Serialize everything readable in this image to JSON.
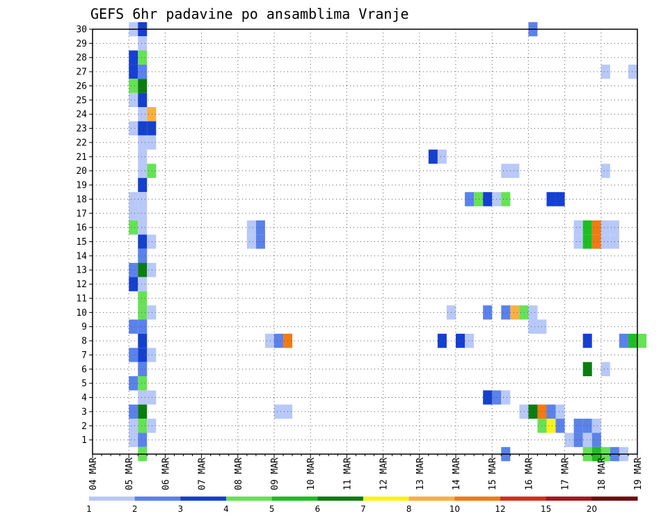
{
  "chart_data": {
    "type": "heatmap",
    "title": "GEFS 6hr padavine po ansamblima Vranje",
    "xlabel": "",
    "ylabel": "",
    "x_labels": [
      "04 MAR",
      "05 MAR",
      "06 MAR",
      "07 MAR",
      "08 MAR",
      "09 MAR",
      "10 MAR",
      "11 MAR",
      "12 MAR",
      "13 MAR",
      "14 MAR",
      "15 MAR",
      "16 MAR",
      "17 MAR",
      "18 MAR",
      "19 MAR"
    ],
    "y_labels": [
      "1",
      "2",
      "3",
      "4",
      "5",
      "6",
      "7",
      "8",
      "9",
      "10",
      "11",
      "12",
      "13",
      "14",
      "15",
      "16",
      "17",
      "18",
      "19",
      "20",
      "21",
      "22",
      "23",
      "24",
      "25",
      "26",
      "27",
      "28",
      "29",
      "30"
    ],
    "x_unit": "6-hour step (4 steps per day, step 0 = 04 MAR)",
    "y_range": [
      0,
      30
    ],
    "grid": true,
    "colorbar": {
      "labels": [
        "1",
        "2",
        "3",
        "4",
        "5",
        "6",
        "7",
        "8",
        "10",
        "12",
        "15",
        "20"
      ],
      "colors": [
        "#b8c8f8",
        "#5a82ec",
        "#1440d0",
        "#66e255",
        "#1dbe22",
        "#0b7d10",
        "#fff21a",
        "#fab040",
        "#f27a14",
        "#d2301c",
        "#a81418",
        "#6e0c0c"
      ]
    },
    "cells": [
      {
        "t": 4,
        "m": 30,
        "v": 1
      },
      {
        "t": 5,
        "m": 30,
        "v": 3
      },
      {
        "t": 5,
        "m": 29,
        "v": 1
      },
      {
        "t": 4,
        "m": 28,
        "v": 3
      },
      {
        "t": 5,
        "m": 28,
        "v": 4
      },
      {
        "t": 4,
        "m": 27,
        "v": 3
      },
      {
        "t": 5,
        "m": 27,
        "v": 2
      },
      {
        "t": 4,
        "m": 26,
        "v": 4
      },
      {
        "t": 5,
        "m": 26,
        "v": 6
      },
      {
        "t": 4,
        "m": 25,
        "v": 1
      },
      {
        "t": 5,
        "m": 25,
        "v": 3
      },
      {
        "t": 5,
        "m": 24,
        "v": 1
      },
      {
        "t": 6,
        "m": 24,
        "v": 8
      },
      {
        "t": 4,
        "m": 23,
        "v": 1
      },
      {
        "t": 5,
        "m": 23,
        "v": 3
      },
      {
        "t": 6,
        "m": 23,
        "v": 3
      },
      {
        "t": 5,
        "m": 22,
        "v": 1
      },
      {
        "t": 6,
        "m": 22,
        "v": 1
      },
      {
        "t": 5,
        "m": 21,
        "v": 1
      },
      {
        "t": 5,
        "m": 20,
        "v": 1
      },
      {
        "t": 6,
        "m": 20,
        "v": 4
      },
      {
        "t": 5,
        "m": 19,
        "v": 3
      },
      {
        "t": 4,
        "m": 18,
        "v": 1
      },
      {
        "t": 5,
        "m": 18,
        "v": 1
      },
      {
        "t": 4,
        "m": 17,
        "v": 1
      },
      {
        "t": 5,
        "m": 17,
        "v": 1
      },
      {
        "t": 4,
        "m": 16,
        "v": 4
      },
      {
        "t": 5,
        "m": 16,
        "v": 1
      },
      {
        "t": 5,
        "m": 15,
        "v": 3
      },
      {
        "t": 6,
        "m": 15,
        "v": 1
      },
      {
        "t": 5,
        "m": 14,
        "v": 2
      },
      {
        "t": 4,
        "m": 13,
        "v": 2
      },
      {
        "t": 5,
        "m": 13,
        "v": 6
      },
      {
        "t": 6,
        "m": 13,
        "v": 1
      },
      {
        "t": 4,
        "m": 12,
        "v": 3
      },
      {
        "t": 5,
        "m": 12,
        "v": 1
      },
      {
        "t": 5,
        "m": 11,
        "v": 4
      },
      {
        "t": 5,
        "m": 10,
        "v": 4
      },
      {
        "t": 6,
        "m": 10,
        "v": 1
      },
      {
        "t": 4,
        "m": 9,
        "v": 2
      },
      {
        "t": 5,
        "m": 9,
        "v": 2
      },
      {
        "t": 5,
        "m": 8,
        "v": 3
      },
      {
        "t": 4,
        "m": 7,
        "v": 2
      },
      {
        "t": 5,
        "m": 7,
        "v": 3
      },
      {
        "t": 6,
        "m": 7,
        "v": 1
      },
      {
        "t": 5,
        "m": 6,
        "v": 2
      },
      {
        "t": 4,
        "m": 5,
        "v": 2
      },
      {
        "t": 5,
        "m": 5,
        "v": 4
      },
      {
        "t": 5,
        "m": 4,
        "v": 1
      },
      {
        "t": 6,
        "m": 4,
        "v": 1
      },
      {
        "t": 4,
        "m": 3,
        "v": 2
      },
      {
        "t": 5,
        "m": 3,
        "v": 6
      },
      {
        "t": 4,
        "m": 2,
        "v": 1
      },
      {
        "t": 5,
        "m": 2,
        "v": 4
      },
      {
        "t": 6,
        "m": 2,
        "v": 1
      },
      {
        "t": 4,
        "m": 1,
        "v": 1
      },
      {
        "t": 5,
        "m": 1,
        "v": 2
      },
      {
        "t": 5,
        "m": 0,
        "v": 4
      },
      {
        "t": 17,
        "m": 16,
        "v": 1
      },
      {
        "t": 18,
        "m": 16,
        "v": 2
      },
      {
        "t": 17,
        "m": 15,
        "v": 1
      },
      {
        "t": 18,
        "m": 15,
        "v": 2
      },
      {
        "t": 19,
        "m": 8,
        "v": 1
      },
      {
        "t": 20,
        "m": 8,
        "v": 2
      },
      {
        "t": 21,
        "m": 8,
        "v": 10
      },
      {
        "t": 20,
        "m": 3,
        "v": 1
      },
      {
        "t": 21,
        "m": 3,
        "v": 1
      },
      {
        "t": 37,
        "m": 21,
        "v": 3
      },
      {
        "t": 38,
        "m": 21,
        "v": 1
      },
      {
        "t": 38,
        "m": 8,
        "v": 3
      },
      {
        "t": 39,
        "m": 10,
        "v": 1
      },
      {
        "t": 40,
        "m": 8,
        "v": 3
      },
      {
        "t": 41,
        "m": 8,
        "v": 1
      },
      {
        "t": 41,
        "m": 18,
        "v": 2
      },
      {
        "t": 42,
        "m": 18,
        "v": 4
      },
      {
        "t": 43,
        "m": 18,
        "v": 3
      },
      {
        "t": 44,
        "m": 18,
        "v": 1
      },
      {
        "t": 45,
        "m": 18,
        "v": 4
      },
      {
        "t": 43,
        "m": 10,
        "v": 2
      },
      {
        "t": 43,
        "m": 4,
        "v": 3
      },
      {
        "t": 44,
        "m": 4,
        "v": 2
      },
      {
        "t": 45,
        "m": 4,
        "v": 1
      },
      {
        "t": 45,
        "m": 20,
        "v": 1
      },
      {
        "t": 46,
        "m": 20,
        "v": 1
      },
      {
        "t": 45,
        "m": 10,
        "v": 2
      },
      {
        "t": 46,
        "m": 10,
        "v": 8
      },
      {
        "t": 47,
        "m": 10,
        "v": 4
      },
      {
        "t": 48,
        "m": 10,
        "v": 1
      },
      {
        "t": 48,
        "m": 9,
        "v": 1
      },
      {
        "t": 49,
        "m": 9,
        "v": 1
      },
      {
        "t": 45,
        "m": 0,
        "v": 2
      },
      {
        "t": 47,
        "m": 3,
        "v": 1
      },
      {
        "t": 48,
        "m": 3,
        "v": 6
      },
      {
        "t": 49,
        "m": 3,
        "v": 10
      },
      {
        "t": 50,
        "m": 3,
        "v": 2
      },
      {
        "t": 51,
        "m": 3,
        "v": 1
      },
      {
        "t": 49,
        "m": 2,
        "v": 4
      },
      {
        "t": 50,
        "m": 2,
        "v": 7
      },
      {
        "t": 51,
        "m": 2,
        "v": 2
      },
      {
        "t": 48,
        "m": 30,
        "v": 2
      },
      {
        "t": 50,
        "m": 18,
        "v": 3
      },
      {
        "t": 51,
        "m": 18,
        "v": 3
      },
      {
        "t": 53,
        "m": 16,
        "v": 1
      },
      {
        "t": 54,
        "m": 16,
        "v": 5
      },
      {
        "t": 55,
        "m": 16,
        "v": 10
      },
      {
        "t": 56,
        "m": 16,
        "v": 1
      },
      {
        "t": 57,
        "m": 16,
        "v": 1
      },
      {
        "t": 53,
        "m": 15,
        "v": 1
      },
      {
        "t": 54,
        "m": 15,
        "v": 5
      },
      {
        "t": 55,
        "m": 15,
        "v": 10
      },
      {
        "t": 56,
        "m": 15,
        "v": 1
      },
      {
        "t": 57,
        "m": 15,
        "v": 1
      },
      {
        "t": 54,
        "m": 8,
        "v": 3
      },
      {
        "t": 54,
        "m": 6,
        "v": 6
      },
      {
        "t": 56,
        "m": 6,
        "v": 1
      },
      {
        "t": 53,
        "m": 2,
        "v": 2
      },
      {
        "t": 54,
        "m": 2,
        "v": 2
      },
      {
        "t": 55,
        "m": 2,
        "v": 1
      },
      {
        "t": 52,
        "m": 1,
        "v": 1
      },
      {
        "t": 53,
        "m": 1,
        "v": 2
      },
      {
        "t": 54,
        "m": 1,
        "v": 1
      },
      {
        "t": 55,
        "m": 1,
        "v": 2
      },
      {
        "t": 54,
        "m": 0,
        "v": 4
      },
      {
        "t": 55,
        "m": 0,
        "v": 5
      },
      {
        "t": 56,
        "m": 0,
        "v": 4
      },
      {
        "t": 57,
        "m": 0,
        "v": 2
      },
      {
        "t": 58,
        "m": 0,
        "v": 1
      },
      {
        "t": 56,
        "m": 27,
        "v": 1
      },
      {
        "t": 56,
        "m": 20,
        "v": 1
      },
      {
        "t": 59,
        "m": 27,
        "v": 1
      },
      {
        "t": 58,
        "m": 8,
        "v": 2
      },
      {
        "t": 59,
        "m": 8,
        "v": 5
      },
      {
        "t": 60,
        "m": 8,
        "v": 4
      }
    ]
  }
}
